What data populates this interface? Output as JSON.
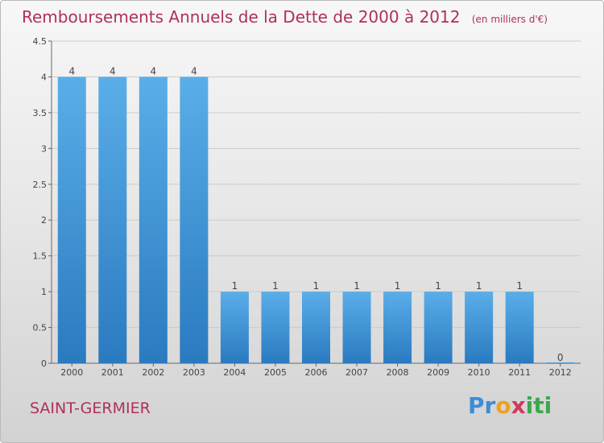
{
  "title": "Remboursements Annuels de la Dette de 2000 à 2012",
  "unit": "(en milliers d'€)",
  "commune": "SAINT-GERMIER",
  "logo": {
    "letters": [
      "P",
      "r",
      "o",
      "x",
      "i",
      "t",
      "i"
    ],
    "colors": [
      "#3a8ed8",
      "#3a8ed8",
      "#f0a020",
      "#d03a5a",
      "#3aa84a",
      "#3aa84a",
      "#3aa84a"
    ]
  },
  "colors": {
    "title": "#b0305a",
    "bar_light": "#5aaee8",
    "bar_dark": "#2a7ac0",
    "grid": "#cccccc",
    "axis": "#666666"
  },
  "chart_data": {
    "type": "bar",
    "categories": [
      "2000",
      "2001",
      "2002",
      "2003",
      "2004",
      "2005",
      "2006",
      "2007",
      "2008",
      "2009",
      "2010",
      "2011",
      "2012"
    ],
    "values": [
      4,
      4,
      4,
      4,
      1,
      1,
      1,
      1,
      1,
      1,
      1,
      1,
      0
    ],
    "data_labels": [
      "4",
      "4",
      "4",
      "4",
      "1",
      "1",
      "1",
      "1",
      "1",
      "1",
      "1",
      "1",
      "0"
    ],
    "ylim": [
      0,
      4.5
    ],
    "yticks": [
      0,
      0.5,
      1,
      1.5,
      2,
      2.5,
      3,
      3.5,
      4,
      4.5
    ],
    "ytick_labels": [
      "0",
      "0.5",
      "1",
      "1.5",
      "2",
      "2.5",
      "3",
      "3.5",
      "4",
      "4.5"
    ],
    "grid": true
  }
}
